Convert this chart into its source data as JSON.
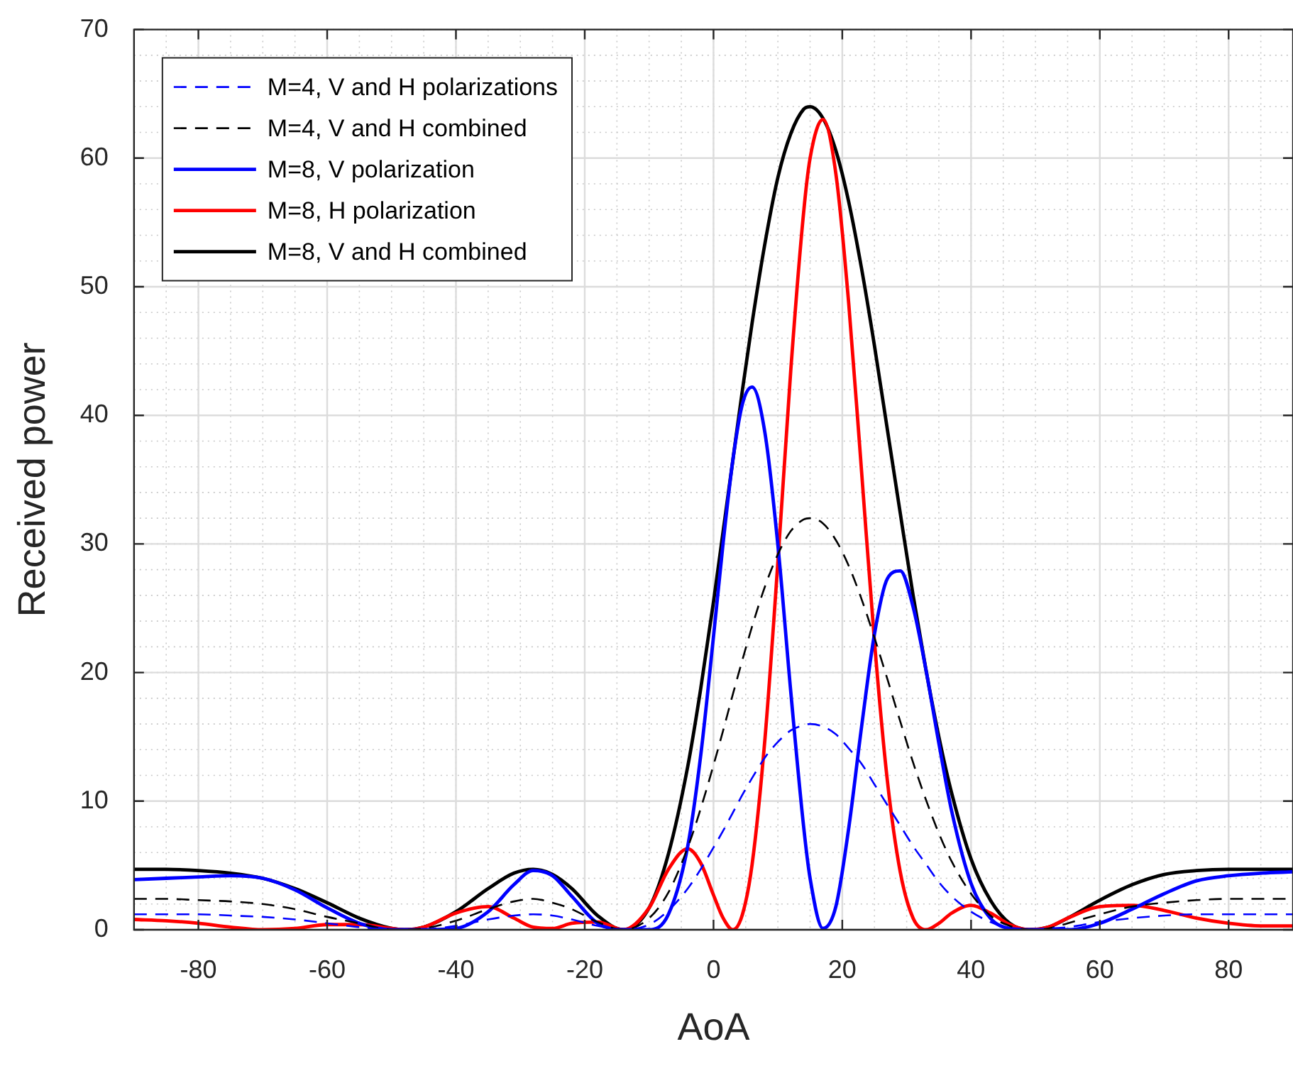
{
  "chart_data": {
    "type": "line",
    "xlabel": "AoA",
    "ylabel": "Received power",
    "x": [
      -90,
      -85,
      -80,
      -75,
      -70,
      -65,
      -60,
      -55,
      -50,
      -48,
      -45,
      -40,
      -35,
      -31,
      -28,
      -25,
      -22,
      -18,
      -14,
      -10,
      -7,
      -4,
      -2,
      0,
      1.5,
      3,
      4.5,
      6,
      8,
      10,
      12,
      14,
      15,
      17,
      19,
      21,
      23,
      25,
      27,
      29,
      31,
      33,
      35,
      37,
      40,
      43,
      46,
      49,
      52,
      55,
      60,
      65,
      70,
      75,
      80,
      85,
      90
    ],
    "series": [
      {
        "name": "M=4, V and H polarizations",
        "color": "#0000ff",
        "line_style": "dashed",
        "values": [
          1.2,
          1.2,
          1.2,
          1.1,
          1.0,
          0.8,
          0.5,
          0.2,
          0.0,
          null,
          0.0,
          0.3,
          0.8,
          1.1,
          1.2,
          1.1,
          0.8,
          0.3,
          0.0,
          0.4,
          1.5,
          3.2,
          4.7,
          6.4,
          7.7,
          9.1,
          10.5,
          11.8,
          13.4,
          14.6,
          15.5,
          15.9,
          16.0,
          15.8,
          15.2,
          14.1,
          12.9,
          11.3,
          9.7,
          8.1,
          6.5,
          5.1,
          3.7,
          2.6,
          1.4,
          0.6,
          0.1,
          0.0,
          0.1,
          0.2,
          0.6,
          0.9,
          1.1,
          1.2,
          1.2,
          1.2,
          1.2
        ]
      },
      {
        "name": "M=4, V and H combined",
        "color": "#000000",
        "line_style": "dashed",
        "values": [
          2.4,
          2.4,
          2.3,
          2.2,
          2.0,
          1.6,
          1.0,
          0.5,
          0.0,
          0.0,
          0.1,
          0.7,
          1.6,
          2.2,
          2.4,
          2.1,
          1.6,
          0.6,
          0.0,
          0.9,
          2.9,
          6.4,
          9.4,
          12.8,
          15.5,
          18.3,
          21.0,
          23.6,
          26.7,
          29.2,
          31.0,
          31.9,
          32.0,
          31.6,
          30.3,
          28.3,
          25.7,
          22.7,
          19.5,
          16.2,
          13.0,
          10.1,
          7.5,
          5.3,
          2.8,
          1.1,
          0.3,
          0.0,
          0.1,
          0.5,
          1.2,
          1.8,
          2.1,
          2.3,
          2.4,
          2.4,
          2.4
        ]
      },
      {
        "name": "M=8, V polarization",
        "color": "#0000ff",
        "line_style": "solid",
        "values": [
          3.9,
          4.0,
          4.1,
          4.2,
          4.0,
          3.1,
          1.7,
          0.5,
          0.0,
          0.0,
          0.0,
          0.1,
          1.4,
          3.5,
          4.6,
          4.2,
          2.6,
          0.5,
          0.0,
          0.0,
          1.2,
          6.5,
          13.5,
          22.8,
          30.1,
          36.5,
          40.9,
          42.2,
          38.6,
          29.9,
          18.5,
          8.0,
          4.0,
          0.1,
          1.8,
          7.9,
          15.8,
          23.0,
          27.3,
          27.9,
          25.1,
          20.2,
          14.5,
          9.2,
          3.6,
          0.9,
          0.1,
          0.0,
          0.0,
          0.0,
          0.5,
          1.6,
          2.8,
          3.8,
          4.2,
          4.4,
          4.5
        ]
      },
      {
        "name": "M=8, H polarization",
        "color": "#ff0000",
        "line_style": "solid",
        "values": [
          0.8,
          0.7,
          0.5,
          0.2,
          0.0,
          0.1,
          0.4,
          0.4,
          0.1,
          0.0,
          0.2,
          1.3,
          1.8,
          0.9,
          0.2,
          0.1,
          0.5,
          0.6,
          0.0,
          1.7,
          4.7,
          6.3,
          5.2,
          2.7,
          0.9,
          0.0,
          1.2,
          5.1,
          14.9,
          28.6,
          43.5,
          55.8,
          60.0,
          63.0,
          58.8,
          48.7,
          35.6,
          22.4,
          11.6,
          4.5,
          0.9,
          0.0,
          0.5,
          1.3,
          1.9,
          1.3,
          0.4,
          0.0,
          0.2,
          0.9,
          1.8,
          1.9,
          1.5,
          0.9,
          0.5,
          0.3,
          0.3
        ]
      },
      {
        "name": "M=8, V and H combined",
        "color": "#000000",
        "line_style": "solid",
        "values": [
          4.7,
          4.7,
          4.6,
          4.4,
          4.0,
          3.2,
          2.1,
          0.9,
          0.1,
          0.0,
          0.2,
          1.4,
          3.2,
          4.4,
          4.7,
          4.3,
          3.2,
          1.1,
          0.0,
          1.7,
          5.9,
          12.7,
          18.7,
          25.5,
          31.0,
          36.5,
          42.0,
          47.2,
          53.4,
          58.5,
          61.9,
          63.8,
          64.0,
          63.1,
          60.6,
          56.6,
          51.4,
          45.4,
          38.9,
          32.4,
          26.0,
          20.2,
          15.0,
          10.6,
          5.5,
          2.3,
          0.5,
          0.0,
          0.2,
          0.9,
          2.3,
          3.5,
          4.3,
          4.6,
          4.7,
          4.7,
          4.7
        ]
      }
    ],
    "xlim": [
      -90,
      90
    ],
    "xticks": [
      -80,
      -60,
      -40,
      -20,
      0,
      20,
      40,
      60,
      80
    ],
    "ylim": [
      0,
      70
    ],
    "yticks": [
      0,
      10,
      20,
      30,
      40,
      50,
      60,
      70
    ],
    "grid": true,
    "legend": "top left",
    "marker": "none"
  }
}
